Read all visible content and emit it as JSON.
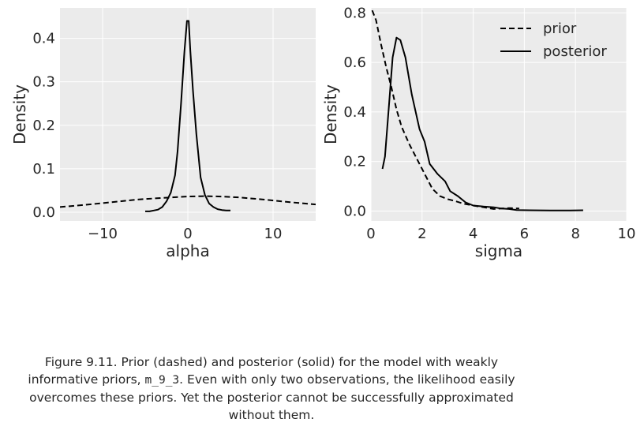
{
  "chart_data": [
    {
      "type": "line",
      "xlabel": "alpha",
      "ylabel": "Density",
      "xlim": [
        -15,
        15
      ],
      "ylim": [
        -0.02,
        0.47
      ],
      "xticks": [
        -10,
        0,
        10
      ],
      "xtick_labels": [
        "−10",
        "0",
        "10"
      ],
      "yticks": [
        0.0,
        0.1,
        0.2,
        0.3,
        0.4
      ],
      "ytick_labels": [
        "0.0",
        "0.1",
        "0.2",
        "0.3",
        "0.4"
      ],
      "grid": true,
      "background": "#ebebeb",
      "series": [
        {
          "style": "dashed",
          "color": "#000000",
          "points": [
            [
              -15,
              0.012
            ],
            [
              -12,
              0.017
            ],
            [
              -9,
              0.023
            ],
            [
              -6,
              0.029
            ],
            [
              -3,
              0.033
            ],
            [
              0,
              0.036
            ],
            [
              2,
              0.037
            ],
            [
              4,
              0.036
            ],
            [
              6,
              0.034
            ],
            [
              9,
              0.029
            ],
            [
              12,
              0.023
            ],
            [
              15,
              0.018
            ]
          ]
        },
        {
          "style": "solid",
          "color": "#000000",
          "points": [
            [
              -5,
              0.002
            ],
            [
              -4.5,
              0.002
            ],
            [
              -4,
              0.004
            ],
            [
              -3.5,
              0.006
            ],
            [
              -3,
              0.012
            ],
            [
              -2.5,
              0.025
            ],
            [
              -2,
              0.045
            ],
            [
              -1.5,
              0.085
            ],
            [
              -1.2,
              0.14
            ],
            [
              -0.8,
              0.25
            ],
            [
              -0.4,
              0.37
            ],
            [
              -0.1,
              0.44
            ],
            [
              0.1,
              0.44
            ],
            [
              0.3,
              0.37
            ],
            [
              0.6,
              0.28
            ],
            [
              1,
              0.18
            ],
            [
              1.5,
              0.08
            ],
            [
              2,
              0.04
            ],
            [
              2.5,
              0.02
            ],
            [
              3,
              0.012
            ],
            [
              3.5,
              0.007
            ],
            [
              4,
              0.005
            ],
            [
              4.5,
              0.004
            ],
            [
              5,
              0.004
            ]
          ]
        }
      ]
    },
    {
      "type": "line",
      "xlabel": "sigma",
      "ylabel": "Density",
      "xlim": [
        0,
        10
      ],
      "ylim": [
        -0.04,
        0.82
      ],
      "xticks": [
        0,
        2,
        4,
        6,
        8,
        10
      ],
      "xtick_labels": [
        "0",
        "2",
        "4",
        "6",
        "8",
        "10"
      ],
      "yticks": [
        0.0,
        0.2,
        0.4,
        0.6,
        0.8
      ],
      "ytick_labels": [
        "0.0",
        "0.2",
        "0.4",
        "0.6",
        "0.8"
      ],
      "grid": true,
      "background": "#ebebeb",
      "legend": {
        "position": "top-right"
      },
      "series": [
        {
          "name": "prior",
          "style": "dashed",
          "color": "#000000",
          "points": [
            [
              0.05,
              0.81
            ],
            [
              0.2,
              0.77
            ],
            [
              0.4,
              0.67
            ],
            [
              0.6,
              0.58
            ],
            [
              0.8,
              0.5
            ],
            [
              1,
              0.41
            ],
            [
              1.2,
              0.34
            ],
            [
              1.5,
              0.27
            ],
            [
              1.8,
              0.21
            ],
            [
              2.1,
              0.15
            ],
            [
              2.4,
              0.09
            ],
            [
              2.7,
              0.06
            ],
            [
              3,
              0.048
            ],
            [
              3.3,
              0.04
            ],
            [
              3.6,
              0.03
            ],
            [
              4,
              0.022
            ],
            [
              4.4,
              0.015
            ],
            [
              4.8,
              0.008
            ],
            [
              5.1,
              0.01
            ],
            [
              5.4,
              0.012
            ],
            [
              5.8,
              0.01
            ]
          ]
        },
        {
          "name": "posterior",
          "style": "solid",
          "color": "#000000",
          "points": [
            [
              0.45,
              0.17
            ],
            [
              0.55,
              0.22
            ],
            [
              0.7,
              0.42
            ],
            [
              0.85,
              0.62
            ],
            [
              1,
              0.7
            ],
            [
              1.15,
              0.69
            ],
            [
              1.35,
              0.62
            ],
            [
              1.6,
              0.47
            ],
            [
              1.9,
              0.33
            ],
            [
              2.1,
              0.28
            ],
            [
              2.3,
              0.19
            ],
            [
              2.6,
              0.15
            ],
            [
              2.9,
              0.12
            ],
            [
              3.1,
              0.08
            ],
            [
              3.4,
              0.06
            ],
            [
              3.7,
              0.035
            ],
            [
              4,
              0.022
            ],
            [
              4.4,
              0.018
            ],
            [
              4.8,
              0.015
            ],
            [
              5.1,
              0.01
            ],
            [
              5.4,
              0.008
            ],
            [
              5.7,
              0.004
            ],
            [
              6.2,
              0.003
            ],
            [
              7,
              0.002
            ],
            [
              7.8,
              0.002
            ],
            [
              8.3,
              0.003
            ]
          ]
        }
      ]
    }
  ],
  "caption": {
    "part1": "Figure 9.11. Prior (dashed) and posterior (solid) for the model with weakly informative priors, ",
    "code": "m_9_3",
    "part2": ". Even with only two observations, the likelihood easily overcomes these priors. Yet the posterior cannot be successfully approximated without them."
  }
}
